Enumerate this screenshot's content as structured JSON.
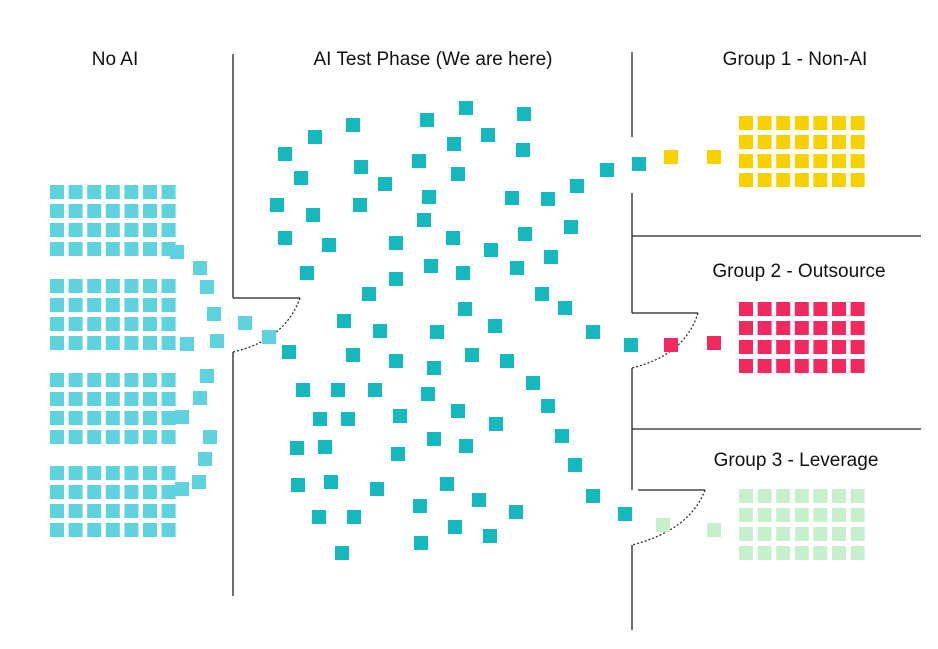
{
  "sections": {
    "no_ai": "No AI",
    "test_phase": "AI Test Phase (We are here)",
    "group1": "Group 1 - Non-AI",
    "group2": "Group 2 - Outsource",
    "group3": "Group 3 - Leverage"
  },
  "colors": {
    "no_ai": "#5fd3dd",
    "test_phase": "#14b8bd",
    "group1": "#f7d200",
    "group2": "#f2295f",
    "group3": "#c6efcc",
    "lines": "#222222"
  }
}
